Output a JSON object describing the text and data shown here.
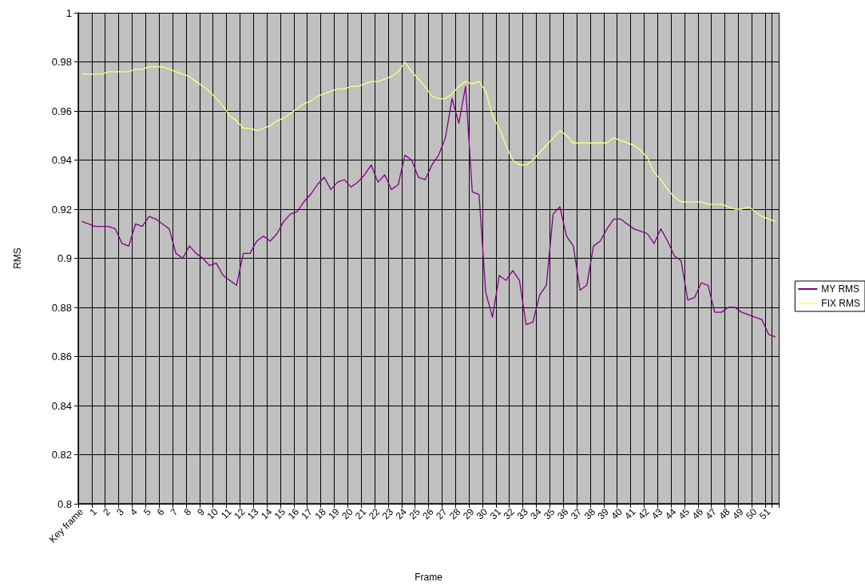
{
  "chart_data": {
    "type": "line",
    "xlabel": "Frame",
    "ylabel": "RMS",
    "categories": [
      "Key frame",
      null,
      "1",
      null,
      "2",
      null,
      "3",
      null,
      "4",
      null,
      "5",
      null,
      "6",
      null,
      "7",
      null,
      "8",
      null,
      "9",
      null,
      "10",
      null,
      "11",
      null,
      "12",
      null,
      "13",
      null,
      "14",
      null,
      "15",
      null,
      "16",
      null,
      "17",
      null,
      "18",
      null,
      "19",
      null,
      "20",
      null,
      "21",
      null,
      "22",
      null,
      "23",
      null,
      "24",
      null,
      "25",
      null,
      "26",
      null,
      "27",
      null,
      "28",
      null,
      "29",
      null,
      "30",
      null,
      "31",
      null,
      "32",
      null,
      "33",
      null,
      "34",
      null,
      "35",
      null,
      "36",
      null,
      "37",
      null,
      "38",
      null,
      "39",
      null,
      "40",
      null,
      "41",
      null,
      "42",
      null,
      "43",
      null,
      "44",
      null,
      "45",
      null,
      "46",
      null,
      "47",
      null,
      "48",
      null,
      "49",
      null,
      "50",
      null,
      "51",
      null
    ],
    "series": [
      {
        "name": "MY RMS",
        "color": "#800080",
        "values": [
          0.915,
          0.914,
          0.913,
          0.913,
          0.913,
          0.912,
          0.906,
          0.905,
          0.914,
          0.913,
          0.917,
          0.916,
          0.914,
          0.912,
          0.902,
          0.9,
          0.905,
          0.902,
          0.9,
          0.897,
          0.898,
          0.893,
          0.891,
          0.889,
          0.902,
          0.902,
          0.907,
          0.909,
          0.907,
          0.91,
          0.915,
          0.918,
          0.919,
          0.923,
          0.926,
          0.93,
          0.933,
          0.928,
          0.931,
          0.932,
          0.929,
          0.931,
          0.934,
          0.938,
          0.931,
          0.934,
          0.928,
          0.93,
          0.942,
          0.94,
          0.933,
          0.932,
          0.938,
          0.942,
          0.949,
          0.965,
          0.955,
          0.97,
          0.927,
          0.926,
          0.886,
          0.876,
          0.893,
          0.891,
          0.895,
          0.891,
          0.873,
          0.874,
          0.885,
          0.889,
          0.918,
          0.921,
          0.909,
          0.905,
          0.887,
          0.889,
          0.905,
          0.907,
          0.912,
          0.916,
          0.916,
          0.914,
          0.912,
          0.911,
          0.91,
          0.906,
          0.912,
          0.907,
          0.901,
          0.899,
          0.883,
          0.884,
          0.89,
          0.889,
          0.878,
          0.878,
          0.88,
          0.88,
          0.878,
          0.877,
          0.876,
          0.875,
          0.869,
          0.868
        ]
      },
      {
        "name": "FIX RMS",
        "color": "#ffff80",
        "values": [
          0.975,
          0.975,
          0.975,
          0.975,
          0.976,
          0.976,
          0.976,
          0.976,
          0.977,
          0.977,
          0.978,
          0.978,
          0.978,
          0.977,
          0.976,
          0.975,
          0.974,
          0.972,
          0.97,
          0.968,
          0.965,
          0.962,
          0.958,
          0.956,
          0.953,
          0.953,
          0.952,
          0.953,
          0.954,
          0.956,
          0.957,
          0.959,
          0.961,
          0.963,
          0.964,
          0.966,
          0.967,
          0.968,
          0.969,
          0.969,
          0.97,
          0.97,
          0.971,
          0.972,
          0.972,
          0.973,
          0.974,
          0.976,
          0.98,
          0.976,
          0.973,
          0.97,
          0.966,
          0.965,
          0.965,
          0.967,
          0.97,
          0.972,
          0.971,
          0.972,
          0.968,
          0.958,
          0.953,
          0.946,
          0.94,
          0.938,
          0.938,
          0.94,
          0.943,
          0.946,
          0.949,
          0.952,
          0.95,
          0.947,
          0.947,
          0.947,
          0.947,
          0.947,
          0.947,
          0.949,
          0.948,
          0.947,
          0.946,
          0.944,
          0.941,
          0.935,
          0.932,
          0.928,
          0.925,
          0.923,
          0.923,
          0.923,
          0.923,
          0.922,
          0.922,
          0.922,
          0.921,
          0.92,
          0.92,
          0.921,
          0.919,
          0.917,
          0.916,
          0.915
        ]
      }
    ],
    "ylim": [
      0.8,
      1
    ],
    "yticks": [
      0.8,
      0.82,
      0.84,
      0.86,
      0.88,
      0.9,
      0.92,
      0.94,
      0.96,
      0.98,
      1
    ],
    "grid": true,
    "legend": "right"
  }
}
